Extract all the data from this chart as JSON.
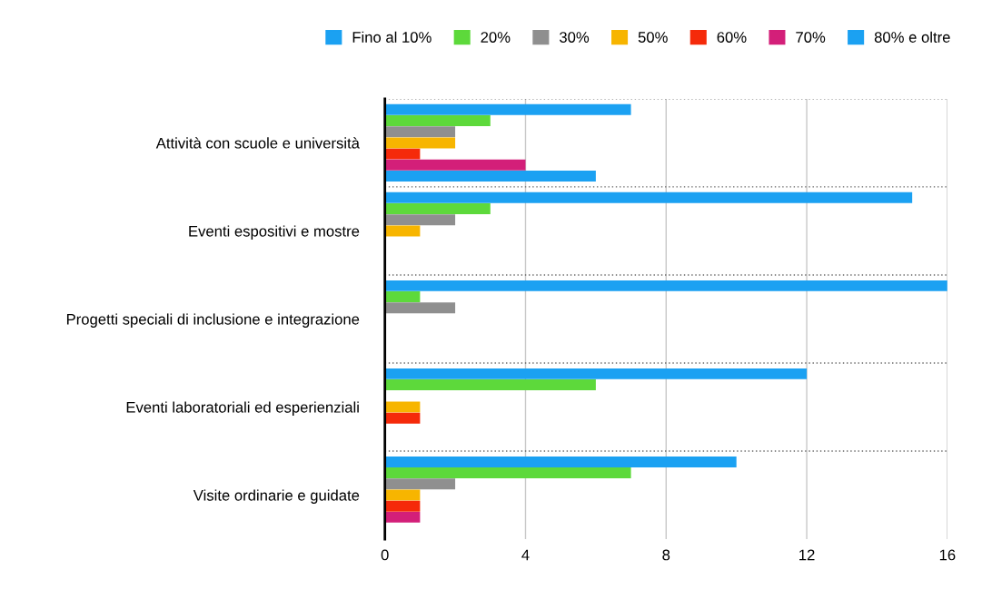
{
  "chart_data": {
    "type": "bar",
    "orientation": "horizontal",
    "categories": [
      "Attività con scuole e università",
      "Eventi espositivi e mostre",
      "Progetti speciali di inclusione e integrazione",
      "Eventi laboratoriali ed esperienziali",
      "Visite ordinarie e guidate"
    ],
    "series": [
      {
        "name": "Fino al 10%",
        "color": "#1ba1f2",
        "values": [
          7,
          15,
          16,
          12,
          10
        ]
      },
      {
        "name": "20%",
        "color": "#5dd93b",
        "values": [
          3,
          3,
          1,
          6,
          7
        ]
      },
      {
        "name": "30%",
        "color": "#8f8f8f",
        "values": [
          2,
          2,
          2,
          null,
          2
        ]
      },
      {
        "name": "50%",
        "color": "#f7b500",
        "values": [
          2,
          1,
          null,
          1,
          1
        ]
      },
      {
        "name": "60%",
        "color": "#f52a0a",
        "values": [
          1,
          null,
          null,
          1,
          1
        ]
      },
      {
        "name": "70%",
        "color": "#d31f79",
        "values": [
          4,
          null,
          null,
          null,
          1
        ]
      },
      {
        "name": "80% e oltre",
        "color": "#1ba1f2",
        "values": [
          6,
          null,
          null,
          null,
          null
        ]
      }
    ],
    "xlim": [
      0,
      16
    ],
    "xticks": [
      0,
      4,
      8,
      12,
      16
    ],
    "grid": "x",
    "legend": "top right"
  }
}
